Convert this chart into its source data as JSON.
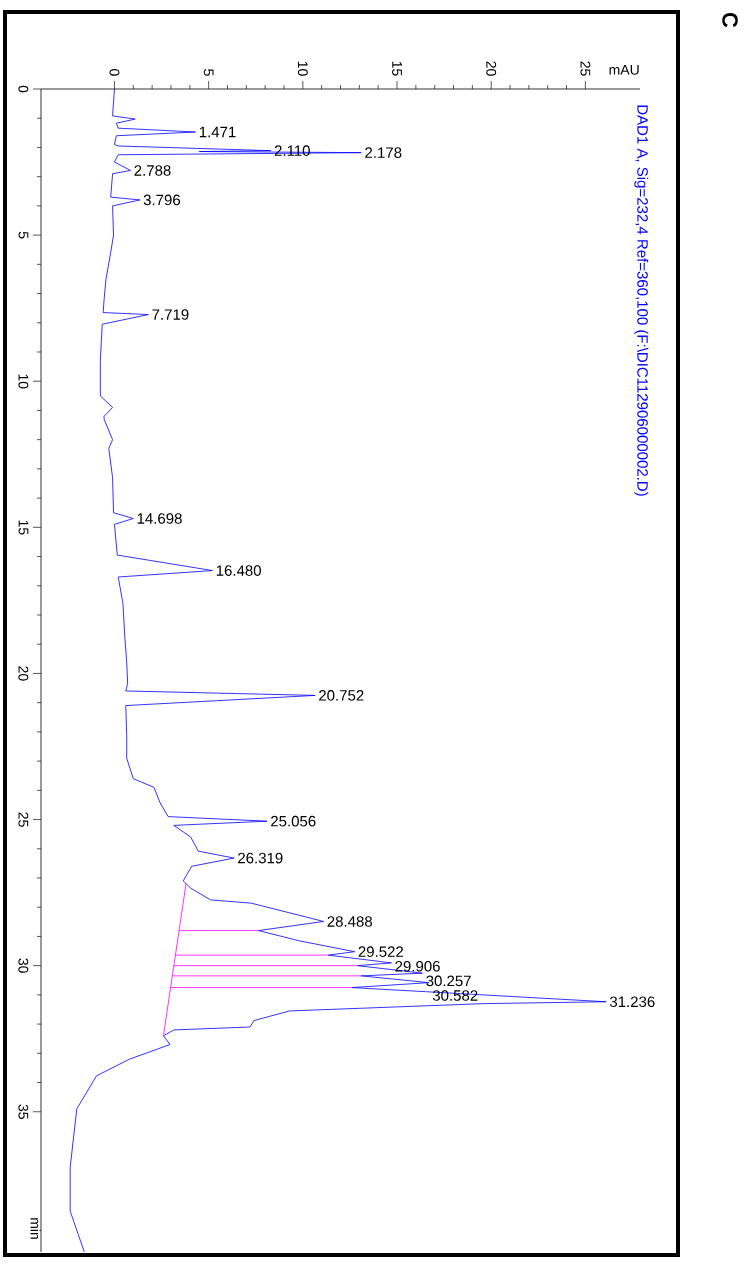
{
  "chart_data": {
    "type": "line",
    "title": "DAD1 A, Sig=232,4 Ref=360,100 (F:\\DIC112906000002.D)",
    "xlabel": "mAU",
    "ylabel": "min",
    "xlim": [
      -3.9,
      27.9
    ],
    "ylim": [
      39.8,
      0
    ],
    "xticks": [
      0,
      5,
      10,
      15,
      20,
      25
    ],
    "yticks": [
      0,
      5,
      10,
      15,
      20,
      25,
      30,
      35
    ],
    "series": [
      {
        "color": "#0000ff",
        "values": [
          0,
          0.92,
          1.03,
          1.17,
          1.34,
          1.471,
          1.6,
          1.9,
          1.95,
          2.11,
          2.14,
          2.178,
          2.25,
          2.5,
          2.788,
          2.9,
          3.7,
          3.796,
          4.0,
          5.0,
          5.6,
          6.5,
          7.2,
          7.65,
          7.719,
          8.05,
          9.3,
          10.5,
          10.9,
          11.2,
          11.3,
          12.0,
          12.3,
          13.3,
          14.5,
          14.698,
          14.9,
          15.95,
          16.48,
          16.7,
          17.6,
          18.77,
          19.6,
          20.35,
          20.6,
          20.752,
          21.1,
          22.1,
          22.9,
          23.6,
          23.9,
          24.4,
          24.9,
          25.056,
          25.2,
          25.6,
          26.08,
          26.319,
          26.6,
          27.1,
          27.35,
          27.75,
          27.86,
          28.488,
          28.8,
          29.15,
          29.522,
          29.64,
          29.906,
          30.0,
          30.257,
          30.35,
          30.582,
          30.75,
          31.236,
          31.3,
          31.55,
          31.88,
          32.1,
          32.2,
          32.4,
          32.7,
          33.2,
          33.77,
          34.9,
          36.9,
          38.4,
          39.8
        ],
        "x": [
          0,
          -0.1,
          1.1,
          0.1,
          0.2,
          4.3,
          0.1,
          0,
          0.2,
          8.3,
          4.5,
          13.1,
          0.2,
          0,
          0.85,
          -0.1,
          -0.2,
          1.35,
          -0.1,
          -0.05,
          -0.2,
          -0.45,
          -0.55,
          -0.6,
          1.8,
          -0.65,
          -0.75,
          -0.75,
          -0.1,
          -0.55,
          -0.55,
          -0.1,
          -0.3,
          -0.1,
          -0.05,
          1.0,
          0,
          0.15,
          5.2,
          0.2,
          0.45,
          0.55,
          0.65,
          0.7,
          0.6,
          10.65,
          0.6,
          0.65,
          0.65,
          1.0,
          2.1,
          2.4,
          2.85,
          8.1,
          3.15,
          4.05,
          4.45,
          6.35,
          4.1,
          3.65,
          4.05,
          5.1,
          7.25,
          11.1,
          7.65,
          9.8,
          12.75,
          11.35,
          14.7,
          12.9,
          16.35,
          13.1,
          16.7,
          12.6,
          26.1,
          19.6,
          9.3,
          7.4,
          7.2,
          3.15,
          2.6,
          2.95,
          0.8,
          -0.95,
          -2.0,
          -2.35,
          -2.35,
          -1.6
        ]
      },
      {
        "color": "#ff00ff",
        "values": [
          27.2,
          32.4,
          null,
          28.8,
          28.8,
          null,
          29.64,
          29.64,
          null,
          30.0,
          30.0,
          null,
          30.35,
          30.35,
          null,
          30.75,
          30.75
        ],
        "x": [
          3.8,
          2.6,
          null,
          3.43,
          7.65,
          null,
          3.24,
          11.35,
          null,
          3.15,
          12.9,
          null,
          3.07,
          13.1,
          null,
          2.98,
          12.6
        ]
      }
    ],
    "annotations": [
      "C",
      {
        "text": "1.471",
        "x": 4.3,
        "y": 1.471
      },
      {
        "text": "2.110",
        "x": 8.3,
        "y": 2.11
      },
      {
        "text": "2.178",
        "x": 13.1,
        "y": 2.178
      },
      {
        "text": "2.788",
        "x": 0.85,
        "y": 2.788
      },
      {
        "text": "3.796",
        "x": 1.35,
        "y": 3.796
      },
      {
        "text": "7.719",
        "x": 1.8,
        "y": 7.719
      },
      {
        "text": "14.698",
        "x": 1.0,
        "y": 14.698
      },
      {
        "text": "16.480",
        "x": 5.2,
        "y": 16.48
      },
      {
        "text": "20.752",
        "x": 10.65,
        "y": 20.752
      },
      {
        "text": "25.056",
        "x": 8.1,
        "y": 25.056
      },
      {
        "text": "26.319",
        "x": 6.35,
        "y": 26.319
      },
      {
        "text": "28.488",
        "x": 11.1,
        "y": 28.488
      },
      {
        "text": "29.522",
        "x": 12.75,
        "y": 29.522
      },
      {
        "text": "29.906",
        "x": 14.7,
        "y": 29.906
      },
      {
        "text": "30.257",
        "x": 16.35,
        "y": 30.257
      },
      {
        "text": "30.582",
        "x": 16.7,
        "y": 30.582
      },
      {
        "text": "31.236",
        "x": 26.1,
        "y": 31.236
      }
    ]
  }
}
